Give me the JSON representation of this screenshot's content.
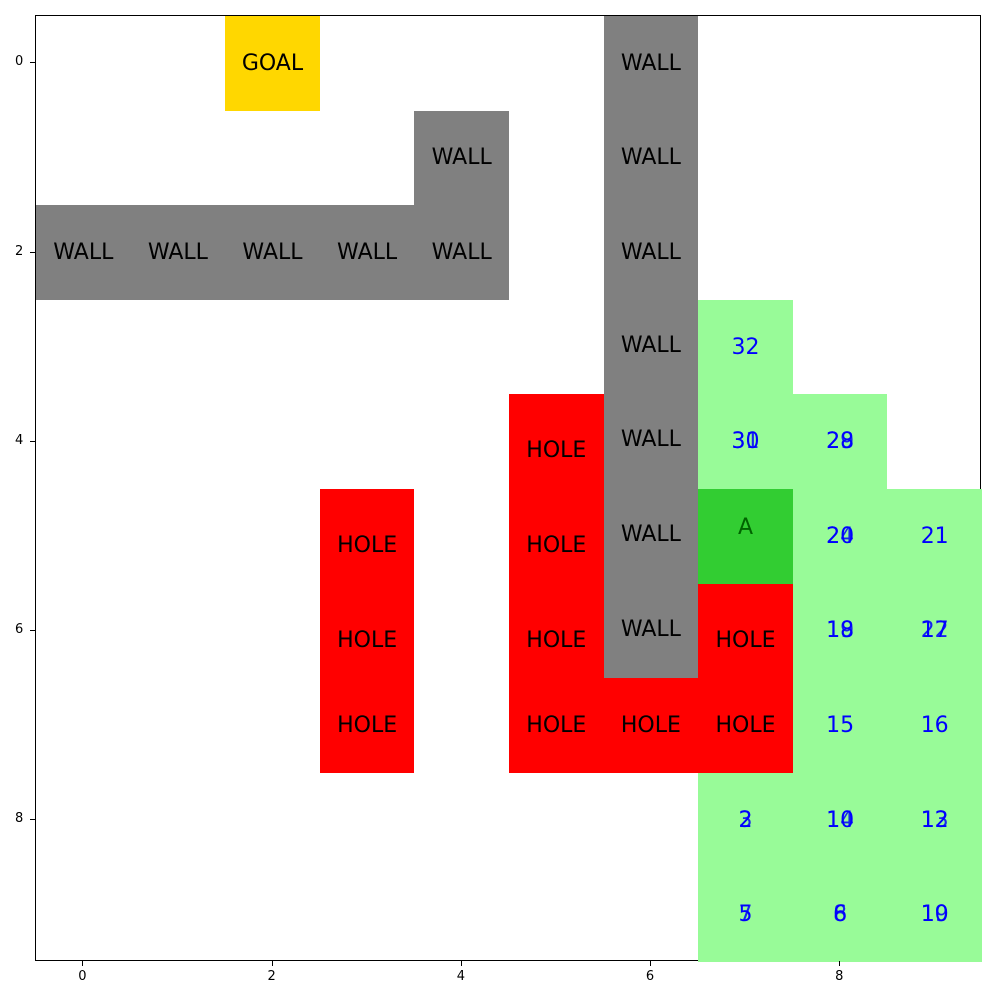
{
  "grid": {
    "rows": 10,
    "cols": 10,
    "colors": {
      "empty": "#ffffff",
      "wall": "#808080",
      "hole": "#ff0000",
      "goal": "#ffd700",
      "path": "#98fb98",
      "agent": "#32cd32",
      "number": "#0000ff",
      "agent_text": "#006400"
    },
    "cells": [
      {
        "row": 0,
        "col": 2,
        "type": "goal",
        "label": "GOAL"
      },
      {
        "row": 0,
        "col": 6,
        "type": "wall",
        "label": "WALL"
      },
      {
        "row": 1,
        "col": 4,
        "type": "wall",
        "label": "WALL"
      },
      {
        "row": 1,
        "col": 6,
        "type": "wall",
        "label": "WALL"
      },
      {
        "row": 2,
        "col": 0,
        "type": "wall",
        "label": "WALL"
      },
      {
        "row": 2,
        "col": 1,
        "type": "wall",
        "label": "WALL"
      },
      {
        "row": 2,
        "col": 2,
        "type": "wall",
        "label": "WALL"
      },
      {
        "row": 2,
        "col": 3,
        "type": "wall",
        "label": "WALL"
      },
      {
        "row": 2,
        "col": 4,
        "type": "wall",
        "label": "WALL"
      },
      {
        "row": 2,
        "col": 6,
        "type": "wall",
        "label": "WALL"
      },
      {
        "row": 3,
        "col": 6,
        "type": "wall",
        "label": "WALL"
      },
      {
        "row": 4,
        "col": 6,
        "type": "wall",
        "label": "WALL"
      },
      {
        "row": 5,
        "col": 6,
        "type": "wall",
        "label": "WALL"
      },
      {
        "row": 6,
        "col": 6,
        "type": "wall",
        "label": "WALL"
      },
      {
        "row": 4,
        "col": 5,
        "type": "hole",
        "label": "HOLE"
      },
      {
        "row": 5,
        "col": 5,
        "type": "hole",
        "label": "HOLE"
      },
      {
        "row": 6,
        "col": 5,
        "type": "hole",
        "label": "HOLE"
      },
      {
        "row": 7,
        "col": 5,
        "type": "hole",
        "label": "HOLE"
      },
      {
        "row": 5,
        "col": 3,
        "type": "hole",
        "label": "HOLE"
      },
      {
        "row": 6,
        "col": 3,
        "type": "hole",
        "label": "HOLE"
      },
      {
        "row": 7,
        "col": 3,
        "type": "hole",
        "label": "HOLE"
      },
      {
        "row": 7,
        "col": 6,
        "type": "hole",
        "label": "HOLE"
      },
      {
        "row": 6,
        "col": 7,
        "type": "hole",
        "label": "HOLE"
      },
      {
        "row": 7,
        "col": 7,
        "type": "hole",
        "label": "HOLE"
      },
      {
        "row": 5,
        "col": 7,
        "type": "agent",
        "label": "A"
      },
      {
        "row": 3,
        "col": 7,
        "type": "path",
        "label": "32"
      },
      {
        "row": 4,
        "col": 7,
        "type": "path",
        "label": "30",
        "overlay": "31"
      },
      {
        "row": 4,
        "col": 8,
        "type": "path",
        "label": "28",
        "overlay": "29"
      },
      {
        "row": 5,
        "col": 8,
        "type": "path",
        "label": "20",
        "overlay": "24"
      },
      {
        "row": 5,
        "col": 9,
        "type": "path",
        "label": "21"
      },
      {
        "row": 6,
        "col": 8,
        "type": "path",
        "label": "18",
        "overlay": "19"
      },
      {
        "row": 6,
        "col": 9,
        "type": "path",
        "label": "17",
        "overlay": "22"
      },
      {
        "row": 7,
        "col": 8,
        "type": "path",
        "label": "15"
      },
      {
        "row": 7,
        "col": 9,
        "type": "path",
        "label": "16"
      },
      {
        "row": 8,
        "col": 7,
        "type": "path",
        "label": "2",
        "overlay": "3"
      },
      {
        "row": 8,
        "col": 8,
        "type": "path",
        "label": "10",
        "overlay": "14"
      },
      {
        "row": 8,
        "col": 9,
        "type": "path",
        "label": "12",
        "overlay": "13"
      },
      {
        "row": 9,
        "col": 7,
        "type": "path",
        "label": "5",
        "overlay": "7"
      },
      {
        "row": 9,
        "col": 8,
        "type": "path",
        "label": "6",
        "overlay": "8"
      },
      {
        "row": 9,
        "col": 9,
        "type": "path",
        "label": "10",
        "overlay": "19"
      }
    ]
  },
  "axes": {
    "x_ticks": [
      "0",
      "2",
      "4",
      "6",
      "8"
    ],
    "y_ticks": [
      "0",
      "2",
      "4",
      "6",
      "8"
    ]
  }
}
